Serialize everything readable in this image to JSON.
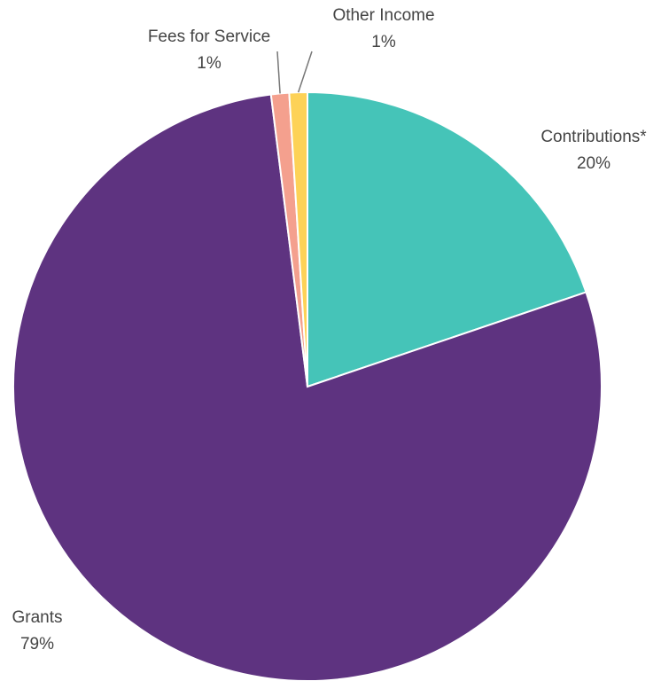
{
  "chart_data": {
    "type": "pie",
    "categories": [
      "Contributions*",
      "Grants",
      "Fees for Service",
      "Other Income"
    ],
    "values": [
      20,
      79,
      1,
      1
    ],
    "value_labels": [
      "20%",
      "79%",
      "1%",
      "1%"
    ],
    "colors": [
      "#45c4b8",
      "#5e3380",
      "#f4a08e",
      "#fdd257"
    ]
  }
}
